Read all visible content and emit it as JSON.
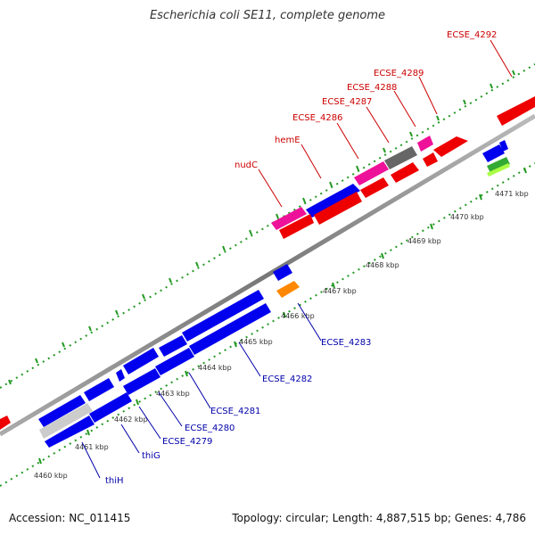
{
  "title": "Escherichia coli SE11, complete genome",
  "footer": {
    "accession": "Accession: NC_011415",
    "topology": "Topology: circular; Length: 4,887,515 bp; Genes: 4,786"
  },
  "colors": {
    "forward_label": "#cc0000",
    "reverse_label": "#0000aa",
    "backbone": "#888888",
    "ticks": "#229922",
    "red": "#ee0000",
    "blue": "#0000ee",
    "pink": "#ee1199",
    "gray": "#666666",
    "orange": "#ff8800",
    "green": "#33aa33",
    "lime": "#aaff44",
    "lightgray": "#cccccc"
  },
  "position_ticks": [
    "4460 kbp",
    "4461 kbp",
    "4462 kbp",
    "4463 kbp",
    "4464 kbp",
    "4465 kbp",
    "4466 kbp",
    "4467 kbp",
    "4468 kbp",
    "4469 kbp",
    "4470 kbp",
    "4471 kbp"
  ],
  "forward_labels": [
    "nudC",
    "hemE",
    "ECSE_4286",
    "ECSE_4287",
    "ECSE_4288",
    "ECSE_4289",
    "ECSE_4292"
  ],
  "reverse_labels": [
    "thiH",
    "thiG",
    "ECSE_4279",
    "ECSE_4280",
    "ECSE_4281",
    "ECSE_4282",
    "ECSE_4283"
  ]
}
